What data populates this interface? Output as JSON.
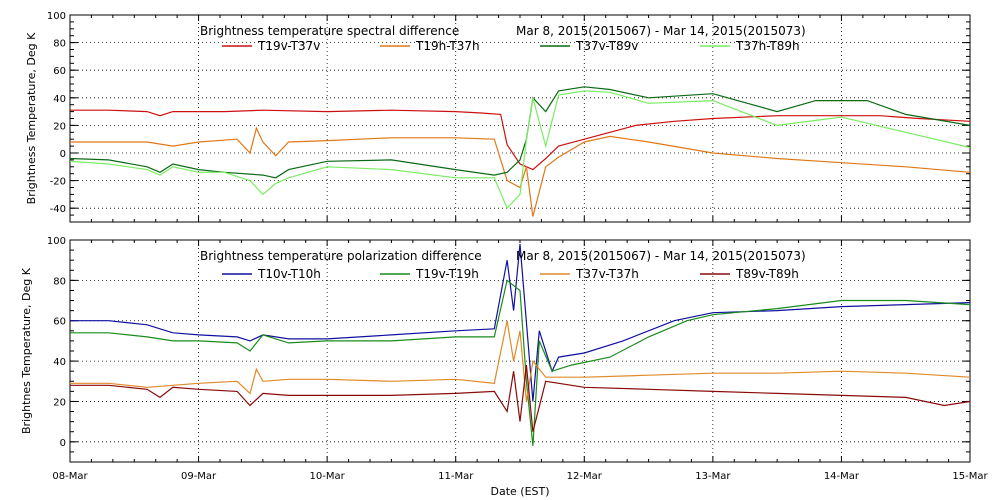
{
  "chart_data": [
    {
      "type": "line",
      "title": "Brightness temperature spectral difference",
      "date_range": "Mar  8, 2015(2015067) - Mar 14, 2015(2015073)",
      "ylabel": "Brightness Temperature, Deg K",
      "xlabel": "",
      "ylim": [
        -50,
        100
      ],
      "yticks": [
        -40,
        -20,
        0,
        20,
        40,
        60,
        80,
        100
      ],
      "xlim": [
        0,
        7
      ],
      "grid": true,
      "legend_position": "top-center",
      "series": [
        {
          "name": "T19v-T37v",
          "color": "#cc1010",
          "points": [
            [
              0,
              31
            ],
            [
              0.3,
              31
            ],
            [
              0.6,
              30
            ],
            [
              0.7,
              27
            ],
            [
              0.8,
              30
            ],
            [
              1.2,
              30
            ],
            [
              1.5,
              31
            ],
            [
              2.0,
              30
            ],
            [
              2.5,
              31
            ],
            [
              3.0,
              30
            ],
            [
              3.2,
              29
            ],
            [
              3.35,
              28
            ],
            [
              3.4,
              6
            ],
            [
              3.5,
              -8
            ],
            [
              3.6,
              -12
            ],
            [
              3.7,
              -4
            ],
            [
              3.8,
              5
            ],
            [
              4.0,
              10
            ],
            [
              4.2,
              15
            ],
            [
              4.4,
              20
            ],
            [
              4.7,
              23
            ],
            [
              5.0,
              25
            ],
            [
              5.5,
              27
            ],
            [
              6.0,
              27
            ],
            [
              6.3,
              27
            ],
            [
              6.6,
              25
            ],
            [
              7.0,
              23
            ]
          ]
        },
        {
          "name": "T19h-T37h",
          "color": "#e07818",
          "points": [
            [
              0,
              8
            ],
            [
              0.3,
              8
            ],
            [
              0.6,
              8
            ],
            [
              0.8,
              5
            ],
            [
              1.0,
              8
            ],
            [
              1.3,
              10
            ],
            [
              1.4,
              0
            ],
            [
              1.45,
              18
            ],
            [
              1.5,
              8
            ],
            [
              1.6,
              -2
            ],
            [
              1.7,
              8
            ],
            [
              2.0,
              9
            ],
            [
              2.5,
              11
            ],
            [
              3.0,
              11
            ],
            [
              3.3,
              10
            ],
            [
              3.4,
              -20
            ],
            [
              3.5,
              -25
            ],
            [
              3.55,
              -10
            ],
            [
              3.6,
              -46
            ],
            [
              3.7,
              -10
            ],
            [
              3.8,
              -3
            ],
            [
              4.0,
              8
            ],
            [
              4.2,
              12
            ],
            [
              4.5,
              8
            ],
            [
              5.0,
              0
            ],
            [
              5.5,
              -4
            ],
            [
              6.0,
              -7
            ],
            [
              6.5,
              -10
            ],
            [
              7.0,
              -14
            ]
          ]
        },
        {
          "name": "T37v-T89v",
          "color": "#0a6a14",
          "points": [
            [
              0,
              -4
            ],
            [
              0.3,
              -5
            ],
            [
              0.6,
              -10
            ],
            [
              0.7,
              -14
            ],
            [
              0.8,
              -8
            ],
            [
              1.0,
              -12
            ],
            [
              1.2,
              -14
            ],
            [
              1.5,
              -16
            ],
            [
              1.6,
              -18
            ],
            [
              1.7,
              -12
            ],
            [
              2.0,
              -6
            ],
            [
              2.5,
              -5
            ],
            [
              3.0,
              -12
            ],
            [
              3.3,
              -16
            ],
            [
              3.4,
              -14
            ],
            [
              3.5,
              -5
            ],
            [
              3.55,
              10
            ],
            [
              3.6,
              40
            ],
            [
              3.7,
              30
            ],
            [
              3.8,
              45
            ],
            [
              4.0,
              48
            ],
            [
              4.2,
              46
            ],
            [
              4.5,
              40
            ],
            [
              5.0,
              43
            ],
            [
              5.5,
              30
            ],
            [
              5.8,
              38
            ],
            [
              6.2,
              38
            ],
            [
              6.5,
              28
            ],
            [
              7.0,
              20
            ]
          ]
        },
        {
          "name": "T37h-T89h",
          "color": "#7aec62",
          "points": [
            [
              0,
              -6
            ],
            [
              0.3,
              -8
            ],
            [
              0.6,
              -12
            ],
            [
              0.7,
              -16
            ],
            [
              0.8,
              -10
            ],
            [
              1.0,
              -14
            ],
            [
              1.2,
              -14
            ],
            [
              1.4,
              -20
            ],
            [
              1.5,
              -30
            ],
            [
              1.6,
              -22
            ],
            [
              1.7,
              -18
            ],
            [
              2.0,
              -10
            ],
            [
              2.5,
              -12
            ],
            [
              3.0,
              -18
            ],
            [
              3.3,
              -18
            ],
            [
              3.4,
              -40
            ],
            [
              3.5,
              -30
            ],
            [
              3.55,
              10
            ],
            [
              3.6,
              40
            ],
            [
              3.7,
              5
            ],
            [
              3.8,
              42
            ],
            [
              4.0,
              45
            ],
            [
              4.2,
              44
            ],
            [
              4.5,
              36
            ],
            [
              5.0,
              38
            ],
            [
              5.5,
              20
            ],
            [
              6.0,
              26
            ],
            [
              6.5,
              15
            ],
            [
              7.0,
              4
            ]
          ]
        }
      ]
    },
    {
      "type": "line",
      "title": "Brightness temperature polarization difference",
      "date_range": "Mar  8, 2015(2015067) - Mar 14, 2015(2015073)",
      "ylabel": "Brightnes Temperature, Deg K",
      "xlabel": "Date (EST)",
      "ylim": [
        -10,
        100
      ],
      "yticks": [
        0,
        20,
        40,
        60,
        80,
        100
      ],
      "xlim": [
        0,
        7
      ],
      "x_tick_labels": [
        "08-Mar",
        "09-Mar",
        "10-Mar",
        "11-Mar",
        "12-Mar",
        "13-Mar",
        "14-Mar",
        "15-Mar"
      ],
      "grid": true,
      "legend_position": "top-center",
      "series": [
        {
          "name": "T10v-T10h",
          "color": "#1010a0",
          "points": [
            [
              0,
              60
            ],
            [
              0.3,
              60
            ],
            [
              0.6,
              58
            ],
            [
              0.8,
              54
            ],
            [
              1.0,
              53
            ],
            [
              1.3,
              52
            ],
            [
              1.4,
              50
            ],
            [
              1.5,
              53
            ],
            [
              1.7,
              51
            ],
            [
              2.0,
              51
            ],
            [
              2.5,
              53
            ],
            [
              3.0,
              55
            ],
            [
              3.3,
              56
            ],
            [
              3.4,
              90
            ],
            [
              3.45,
              65
            ],
            [
              3.5,
              98
            ],
            [
              3.6,
              20
            ],
            [
              3.65,
              55
            ],
            [
              3.75,
              35
            ],
            [
              3.8,
              42
            ],
            [
              4.0,
              44
            ],
            [
              4.3,
              50
            ],
            [
              4.7,
              60
            ],
            [
              5.0,
              64
            ],
            [
              5.5,
              65
            ],
            [
              6.0,
              67
            ],
            [
              6.5,
              68
            ],
            [
              7.0,
              69
            ]
          ]
        },
        {
          "name": "T19v-T19h",
          "color": "#1a8c1a",
          "points": [
            [
              0,
              54
            ],
            [
              0.3,
              54
            ],
            [
              0.6,
              52
            ],
            [
              0.8,
              50
            ],
            [
              1.0,
              50
            ],
            [
              1.3,
              49
            ],
            [
              1.4,
              45
            ],
            [
              1.5,
              53
            ],
            [
              1.7,
              49
            ],
            [
              2.0,
              50
            ],
            [
              2.5,
              50
            ],
            [
              3.0,
              52
            ],
            [
              3.3,
              52
            ],
            [
              3.4,
              80
            ],
            [
              3.5,
              75
            ],
            [
              3.55,
              30
            ],
            [
              3.6,
              -2
            ],
            [
              3.65,
              50
            ],
            [
              3.75,
              35
            ],
            [
              3.9,
              38
            ],
            [
              4.2,
              42
            ],
            [
              4.5,
              52
            ],
            [
              4.8,
              60
            ],
            [
              5.0,
              63
            ],
            [
              5.5,
              66
            ],
            [
              6.0,
              70
            ],
            [
              6.5,
              70
            ],
            [
              7.0,
              68
            ]
          ]
        },
        {
          "name": "T37v-T37h",
          "color": "#e08a28",
          "points": [
            [
              0,
              29
            ],
            [
              0.3,
              29
            ],
            [
              0.6,
              27
            ],
            [
              0.8,
              28
            ],
            [
              1.0,
              29
            ],
            [
              1.3,
              30
            ],
            [
              1.4,
              24
            ],
            [
              1.45,
              36
            ],
            [
              1.5,
              30
            ],
            [
              1.7,
              31
            ],
            [
              2.0,
              31
            ],
            [
              2.5,
              30
            ],
            [
              3.0,
              31
            ],
            [
              3.3,
              29
            ],
            [
              3.4,
              60
            ],
            [
              3.45,
              40
            ],
            [
              3.5,
              55
            ],
            [
              3.55,
              20
            ],
            [
              3.6,
              40
            ],
            [
              3.7,
              32
            ],
            [
              4.0,
              32
            ],
            [
              4.5,
              33
            ],
            [
              5.0,
              34
            ],
            [
              5.5,
              34
            ],
            [
              6.0,
              35
            ],
            [
              6.5,
              34
            ],
            [
              7.0,
              32
            ]
          ]
        },
        {
          "name": "T89v-T89h",
          "color": "#8a0a0a",
          "points": [
            [
              0,
              28
            ],
            [
              0.3,
              28
            ],
            [
              0.6,
              26
            ],
            [
              0.7,
              22
            ],
            [
              0.8,
              27
            ],
            [
              1.0,
              26
            ],
            [
              1.3,
              25
            ],
            [
              1.4,
              18
            ],
            [
              1.5,
              24
            ],
            [
              1.7,
              23
            ],
            [
              2.0,
              23
            ],
            [
              2.5,
              23
            ],
            [
              3.0,
              24
            ],
            [
              3.3,
              25
            ],
            [
              3.4,
              15
            ],
            [
              3.45,
              35
            ],
            [
              3.5,
              10
            ],
            [
              3.55,
              38
            ],
            [
              3.6,
              5
            ],
            [
              3.7,
              30
            ],
            [
              4.0,
              27
            ],
            [
              4.5,
              26
            ],
            [
              5.0,
              25
            ],
            [
              5.5,
              24
            ],
            [
              6.0,
              23
            ],
            [
              6.5,
              22
            ],
            [
              6.8,
              18
            ],
            [
              7.0,
              20
            ]
          ]
        }
      ]
    }
  ]
}
